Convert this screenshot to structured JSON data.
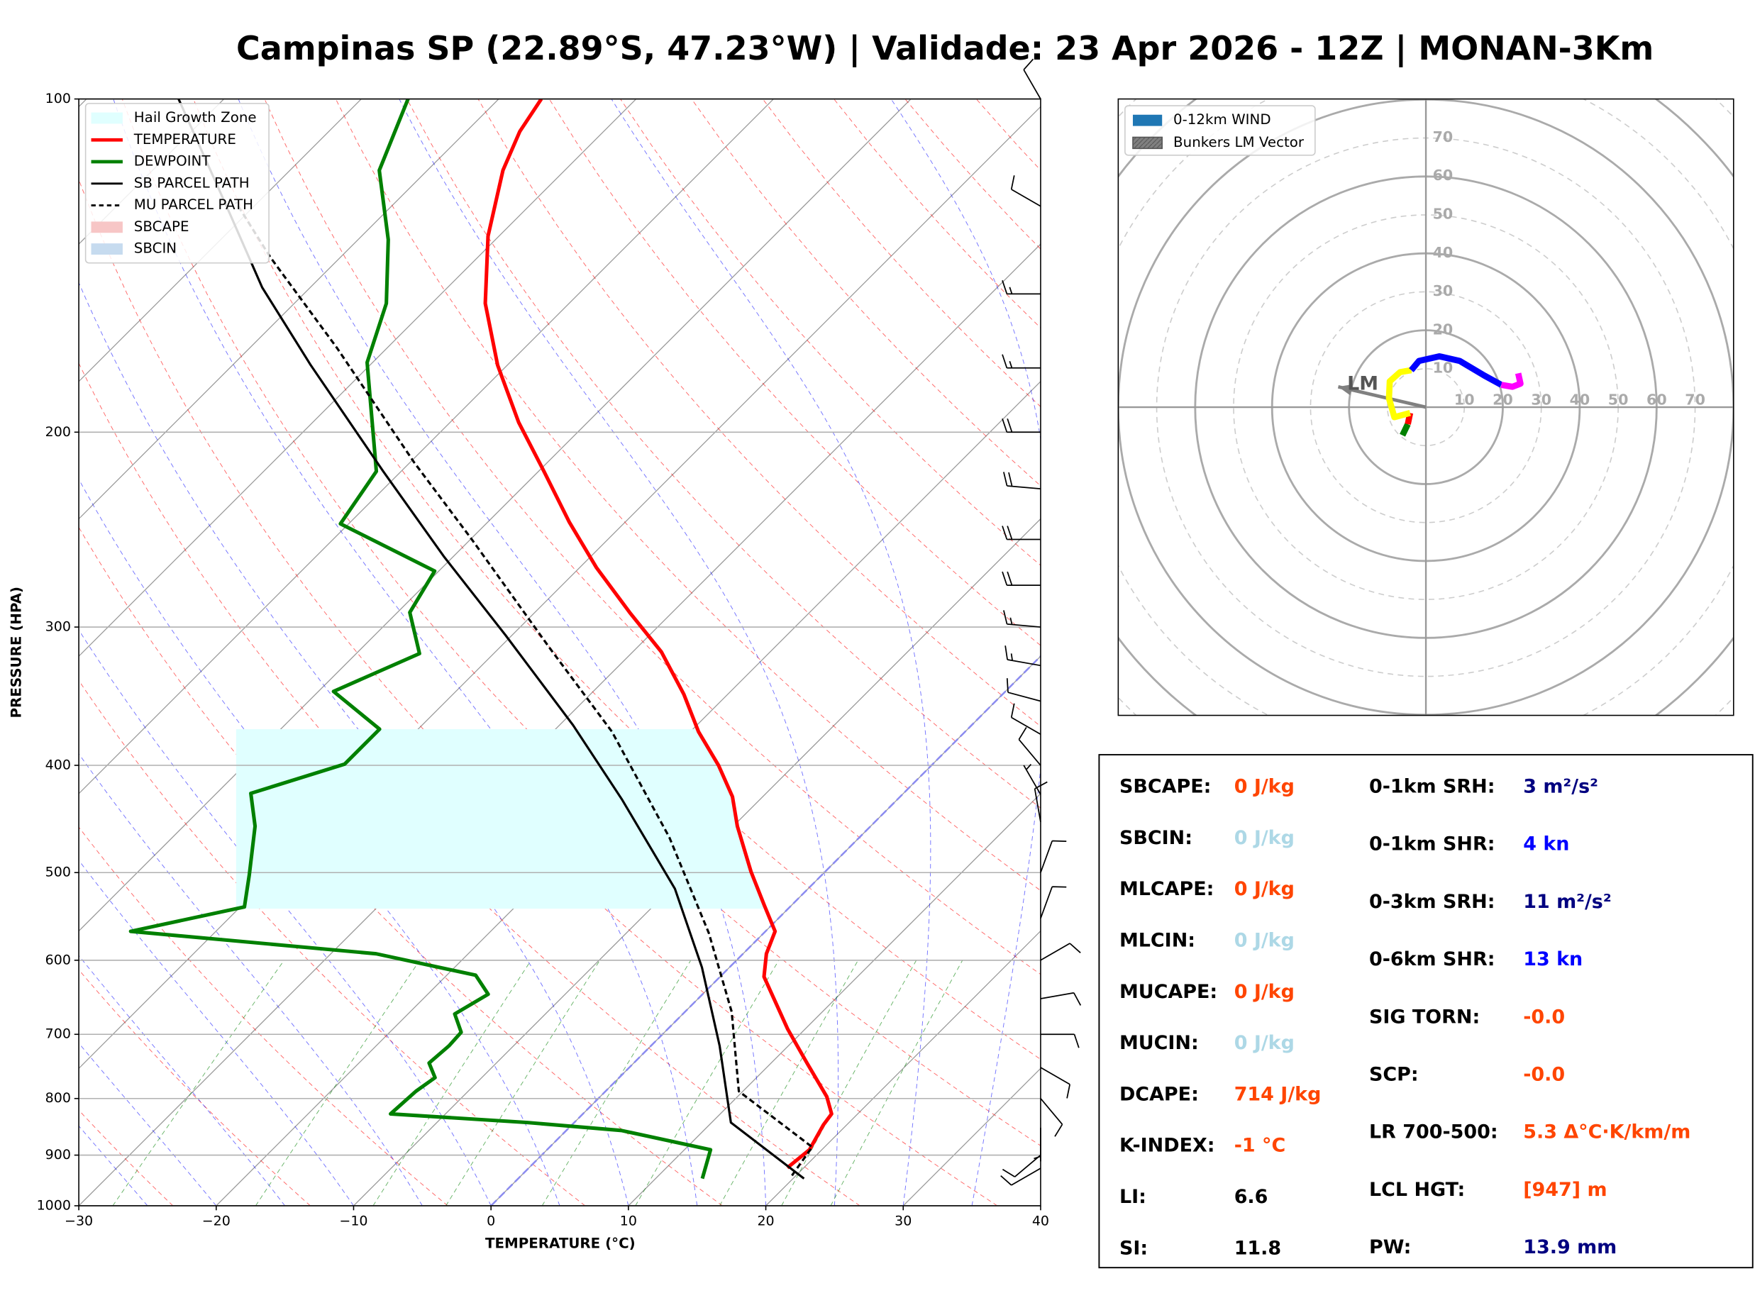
{
  "title": "Campinas SP (22.89°S, 47.23°W) | Validade: 23 Apr 2026 - 12Z | MONAN-3Km",
  "chart_data": [
    {
      "type": "skewt",
      "xlabel": "TEMPERATURE (°C)",
      "ylabel": "PRESSURE (HPA)",
      "xlim": [
        -30,
        40
      ],
      "ylim": [
        1000,
        100
      ],
      "yscale": "log",
      "skew": 45,
      "grid": true,
      "legend": "upper left",
      "xticks": [
        {
          "value": -30,
          "label": "−30"
        },
        {
          "value": -20,
          "label": "−20"
        },
        {
          "value": -10,
          "label": "−10"
        },
        0,
        10,
        20,
        30,
        40
      ],
      "yticks": [
        100,
        200,
        300,
        400,
        500,
        600,
        700,
        800,
        900,
        1000
      ],
      "series": [
        {
          "name": "TEMPERATURE",
          "color": "#ff0000",
          "style": "solid",
          "p": [
            924,
            890,
            845,
            826,
            797,
            743,
            692,
            621,
            592,
            565,
            535,
            499,
            454,
            427,
            400,
            373,
            345,
            316,
            291,
            265,
            241,
            217,
            196,
            174,
            153,
            133,
            116,
            107,
            100
          ],
          "values": [
            18.8,
            19.1,
            18.3,
            18.1,
            16.5,
            12.6,
            8.7,
            3.2,
            1.7,
            0.7,
            -2.0,
            -5.4,
            -9.7,
            -12.2,
            -15.5,
            -19.4,
            -23.2,
            -27.9,
            -33.1,
            -38.8,
            -44.1,
            -49.6,
            -55.0,
            -60.7,
            -66.1,
            -70.8,
            -74.5,
            -76.1,
            -76.9
          ]
        },
        {
          "name": "DEWPOINT",
          "color": "#008000",
          "style": "solid",
          "p": [
            945,
            890,
            855,
            841,
            826,
            788,
            766,
            743,
            717,
            697,
            671,
            644,
            619,
            592,
            565,
            537,
            502,
            454,
            424,
            399,
            371,
            343,
            317,
            291,
            267,
            242,
            217,
            173,
            153,
            134,
            116,
            100
          ],
          "values": [
            13.4,
            11.9,
            4.0,
            -3.4,
            -14.0,
            -13.8,
            -13.4,
            -14.9,
            -14.7,
            -14.8,
            -16.6,
            -15.6,
            -17.9,
            -26.7,
            -46.2,
            -39.7,
            -41.7,
            -44.8,
            -47.5,
            -42.8,
            -42.8,
            -48.9,
            -45.4,
            -49.1,
            -50.3,
            -60.6,
            -61.8,
            -70.4,
            -73.3,
            -77.8,
            -83.5,
            -86.6
          ]
        },
        {
          "name": "SB PARCEL PATH",
          "color": "#000000",
          "style": "solid",
          "p": [
            945,
            841,
            717,
            609,
            517,
            429,
            368,
            305,
            259,
            217,
            174,
            148,
            127,
            100
          ],
          "values": [
            20.8,
            11.4,
            5.0,
            -2.0,
            -9.7,
            -20.1,
            -29.0,
            -40.5,
            -50.7,
            -61.3,
            -74.3,
            -83.5,
            -91.2,
            -103.3
          ]
        },
        {
          "name": "MU PARCEL PATH",
          "color": "#000000",
          "style": "dashed",
          "p": [
            939,
            885,
            788,
            668,
            567,
            465,
            373,
            313,
            250,
            213,
            168,
            139,
            124
          ],
          "values": [
            19.7,
            19.1,
            9.7,
            3.4,
            -4.0,
            -13.8,
            -25.7,
            -36.4,
            -49.9,
            -59.7,
            -73.6,
            -85.1,
            -91.6
          ]
        }
      ],
      "hail_growth_zone": {
        "name": "Hail Growth Zone",
        "color": "#e0ffff",
        "p": [
          539,
          371
        ]
      },
      "legend_patches": [
        {
          "name": "SBCAPE",
          "color": "#f7c6c6"
        },
        {
          "name": "SBCIN",
          "color": "#c6dbef"
        }
      ],
      "winds": {
        "p": [
          100,
          125,
          150,
          175,
          200,
          225,
          250,
          275,
          300,
          325,
          350,
          375,
          400,
          425,
          450,
          500,
          550,
          600,
          650,
          700,
          750,
          800,
          850,
          900,
          925
        ],
        "speed": [
          10,
          10,
          15,
          15,
          20,
          20,
          20,
          20,
          15,
          15,
          10,
          10,
          10,
          5,
          10,
          10,
          10,
          10,
          10,
          10,
          10,
          10,
          5,
          10,
          10
        ],
        "direction": [
          330,
          300,
          270,
          270,
          270,
          275,
          270,
          270,
          275,
          280,
          285,
          300,
          320,
          330,
          350,
          20,
          20,
          60,
          80,
          90,
          120,
          140,
          180,
          230,
          240
        ]
      }
    },
    {
      "type": "hodograph",
      "xlim": [
        -80,
        80
      ],
      "ylim": [
        -80,
        80
      ],
      "rticks": [
        10,
        20,
        30,
        40,
        50,
        60,
        70
      ],
      "legend": "upper left",
      "wind_name": "0-12km WIND",
      "wind_color": "#1f77b4",
      "segments": [
        {
          "color": "#008000",
          "u": [
            -6.1,
            -4.7
          ],
          "v": [
            -7.3,
            -4.4
          ]
        },
        {
          "color": "#ff0000",
          "u": [
            -4.7,
            -4.1
          ],
          "v": [
            -4.4,
            -1.5
          ]
        },
        {
          "color": "#ffff00",
          "u": [
            -4.1,
            -8.2,
            -9.6,
            -9.4,
            -6.7,
            -3.8
          ],
          "v": [
            -1.5,
            -2.6,
            2.3,
            6.7,
            9.1,
            9.6
          ]
        },
        {
          "color": "#0000ff",
          "u": [
            -3.8,
            -1.8,
            3.5,
            8.8,
            15.2,
            19.6
          ],
          "v": [
            9.6,
            12.0,
            13.2,
            12.0,
            8.2,
            5.8
          ]
        },
        {
          "color": "#ff00ff",
          "u": [
            19.6,
            22.5,
            24.6,
            24.0
          ],
          "v": [
            5.8,
            5.3,
            6.1,
            8.8
          ]
        }
      ],
      "storm_motion": {
        "name": "Bunkers LM Vector",
        "label": "LM",
        "u": -22.8,
        "v": 5.3,
        "color": "#808080"
      }
    }
  ],
  "stats": {
    "left": [
      {
        "label": "SBCAPE:",
        "value": "0 J/kg",
        "color": "#ff4500"
      },
      {
        "label": "SBCIN:",
        "value": "0 J/kg",
        "color": "#add8e6"
      },
      {
        "label": "MLCAPE:",
        "value": "0 J/kg",
        "color": "#ff4500"
      },
      {
        "label": "MLCIN:",
        "value": "0 J/kg",
        "color": "#add8e6"
      },
      {
        "label": "MUCAPE:",
        "value": "0 J/kg",
        "color": "#ff4500"
      },
      {
        "label": "MUCIN:",
        "value": "0 J/kg",
        "color": "#add8e6"
      },
      {
        "label": "DCAPE:",
        "value": "714 J/kg",
        "color": "#ff4500"
      },
      {
        "label": "K-INDEX:",
        "value": "-1 °C",
        "color": "#ff4500"
      },
      {
        "label": "LI:",
        "value": "6.6",
        "color": "#000000"
      },
      {
        "label": "SI:",
        "value": "11.8",
        "color": "#000000"
      }
    ],
    "right": [
      {
        "label": "0-1km SRH:",
        "value": "3 m²/s²",
        "color": "#000080"
      },
      {
        "label": "0-1km SHR:",
        "value": "4 kn",
        "color": "#0000ff"
      },
      {
        "label": "0-3km SRH:",
        "value": "11 m²/s²",
        "color": "#000080"
      },
      {
        "label": "0-6km SHR:",
        "value": "13 kn",
        "color": "#0000ff"
      },
      {
        "label": "SIG TORN:",
        "value": "-0.0",
        "color": "#ff4500"
      },
      {
        "label": "SCP:",
        "value": "-0.0",
        "color": "#ff4500"
      },
      {
        "label": "LR 700-500:",
        "value": "5.3 Δ°C·K/km/m",
        "color": "#ff4500"
      },
      {
        "label": "LCL HGT:",
        "value": "[947] m",
        "color": "#ff4500"
      },
      {
        "label": "PW:",
        "value": "13.9 mm",
        "color": "#000080"
      }
    ]
  }
}
